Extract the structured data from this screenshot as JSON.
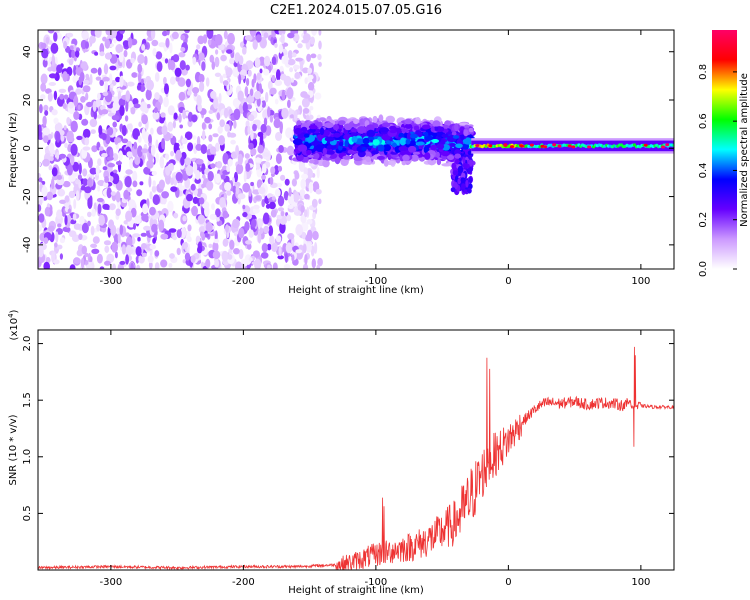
{
  "title": "C2E1.2024.015.07.05.G16",
  "chart_data": [
    {
      "type": "heatmap",
      "xlabel": "Height of straight line (km)",
      "ylabel": "Frequency (Hz)",
      "xlim": [
        -355,
        125
      ],
      "ylim": [
        -50,
        49
      ],
      "xticks": [
        -300,
        -200,
        -100,
        0,
        100
      ],
      "xtick_labels": [
        "-300",
        "-200",
        "-100",
        "0",
        "100"
      ],
      "yticks": [
        -40,
        -20,
        0,
        20,
        40
      ],
      "ytick_labels": [
        "-40",
        "-20",
        "0",
        "20",
        "40"
      ],
      "colorbar": {
        "label": "Normalized spectral amplitude",
        "range": [
          0,
          0.97
        ],
        "ticks": [
          0,
          0.2,
          0.4,
          0.6,
          0.8
        ],
        "tick_labels": [
          "0.0",
          "0.2",
          "0.4",
          "0.6",
          "0.8"
        ],
        "colormap": [
          "#ffffff",
          "#cc99ff",
          "#6600ff",
          "#0000ff",
          "#00ffff",
          "#00ff00",
          "#ffff00",
          "#ff0000",
          "#ff0066"
        ]
      },
      "regions": [
        {
          "x_range": [
            -355,
            -142
          ],
          "freq_range": [
            -50,
            49
          ],
          "amplitude": [
            0.0,
            0.2
          ]
        },
        {
          "x_range": [
            -160,
            -28
          ],
          "freq_center": 3,
          "freq_halfwidth": 9,
          "amplitude": [
            0.15,
            0.5
          ]
        },
        {
          "x_range": [
            -28,
            125
          ],
          "freq_center": 1,
          "freq_halfwidth": 3,
          "amplitude": [
            0.4,
            0.95
          ]
        }
      ]
    },
    {
      "type": "line",
      "xlabel": "Height of straight line (km)",
      "ylabel": "SNR (10 * v/v)",
      "y_multiplier": "(x10",
      "y_multiplier_exp": "4",
      "y_multiplier_close": ")",
      "xlim": [
        -355,
        125
      ],
      "ylim": [
        0,
        2.12
      ],
      "xticks": [
        -300,
        -200,
        -100,
        0,
        100
      ],
      "xtick_labels": [
        "-300",
        "-200",
        "-100",
        "0",
        "100"
      ],
      "yticks": [
        0.5,
        1.0,
        1.5,
        2.0
      ],
      "ytick_labels": [
        "0.5",
        "1.0",
        "1.5",
        "2.0"
      ],
      "color": "#ee3333",
      "series": [
        {
          "x": [
            -355,
            -300,
            -250,
            -200,
            -160,
            -140,
            -125,
            -115,
            -105,
            -95,
            -85,
            -75,
            -65,
            -55,
            -48,
            -40,
            -35,
            -30,
            -25,
            -20,
            -15,
            -10,
            -5,
            0,
            5,
            10,
            15,
            20,
            25,
            30,
            40,
            50,
            60,
            70,
            80,
            88,
            92,
            95,
            98,
            100,
            110,
            125
          ],
          "y": [
            0.02,
            0.03,
            0.02,
            0.03,
            0.03,
            0.04,
            0.05,
            0.08,
            0.12,
            0.15,
            0.18,
            0.2,
            0.24,
            0.3,
            0.36,
            0.42,
            0.52,
            0.6,
            0.72,
            0.85,
            0.95,
            1.02,
            1.08,
            1.15,
            1.22,
            1.3,
            1.36,
            1.42,
            1.46,
            1.48,
            1.47,
            1.49,
            1.46,
            1.48,
            1.47,
            1.45,
            1.5,
            1.45,
            1.44,
            1.45,
            1.44,
            1.44
          ]
        }
      ]
    }
  ]
}
